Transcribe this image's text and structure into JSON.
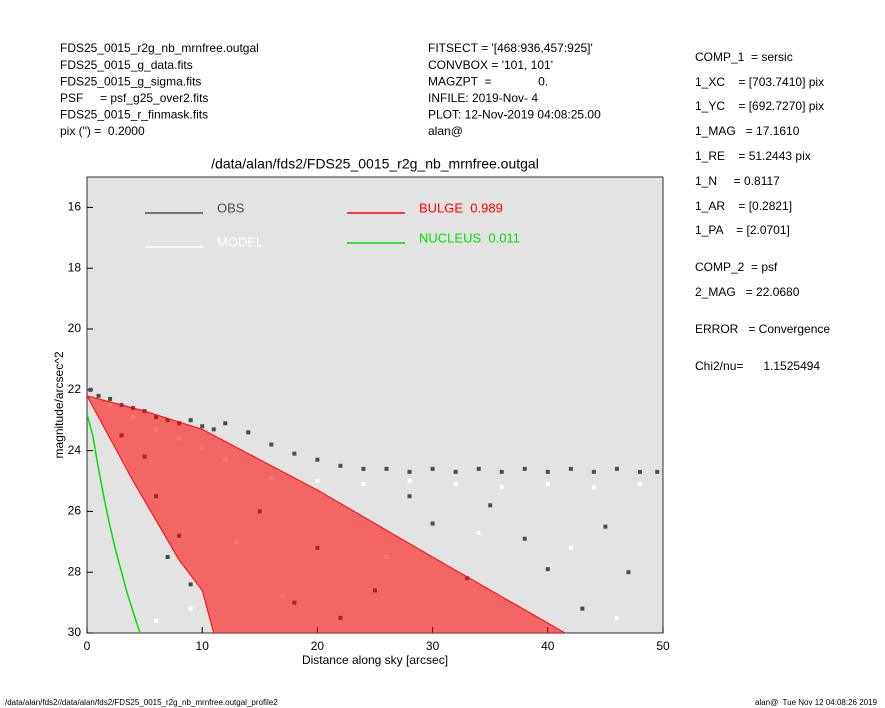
{
  "header": {
    "left": [
      "FDS25_0015_r2g_nb_mrnfree.outgal",
      "FDS25_0015_g_data.fits",
      "FDS25_0015_g_sigma.fits",
      "PSF     = psf_g25_over2.fits",
      "FDS25_0015_r_finmask.fits",
      "pix (\") =  0.2000"
    ],
    "middle": [
      "FITSECT = '[468:936,457:925]'",
      "CONVBOX = '101, 101'",
      "MAGZPT  =              0.",
      "INFILE: 2019-Nov- 4",
      "PLOT: 12-Nov-2019 04:08:25.00",
      "alan@"
    ],
    "right": [
      "COMP_1  = sersic",
      "1_XC    = [703.7410] pix",
      "1_YC    = [692.7270] pix",
      "1_MAG   = 17.1610",
      "1_RE    = 51.2443 pix",
      "1_N     = 0.8117",
      "1_AR    = [0.2821]",
      "1_PA    = [2.0701]",
      "COMP_2  = psf",
      "2_MAG   = 22.0680",
      "ERROR   = Convergence",
      "Chi2/nu=      1.1525494"
    ]
  },
  "chart_data": {
    "type": "scatter",
    "title": "/data/alan/fds2/FDS25_0015_r2g_nb_mrnfree.outgal",
    "x_label": "Distance along sky [arcsec]",
    "y_label": "magnitude/arcsec^2",
    "xlim": [
      0,
      50
    ],
    "ylim": [
      30,
      15
    ],
    "xticks": [
      0,
      10,
      20,
      30,
      40,
      50
    ],
    "yticks": [
      16,
      18,
      20,
      22,
      24,
      26,
      28,
      30
    ],
    "background": "#e3e3e3",
    "series": [
      {
        "name": "OBS",
        "color": "#4d4d4d",
        "style": "points",
        "x": [
          0.3,
          1,
          2,
          3,
          4,
          5,
          6,
          7,
          8,
          9,
          10,
          11,
          12,
          14,
          16,
          18,
          20,
          22,
          24,
          26,
          28,
          30,
          32,
          34,
          36,
          38,
          40,
          42,
          44,
          46,
          48,
          49.5,
          3,
          5,
          6,
          8,
          7,
          9,
          15,
          20,
          25,
          30,
          35,
          40,
          45,
          18,
          22,
          28,
          33,
          38,
          43,
          47
        ],
        "values": [
          22,
          22.2,
          22.3,
          22.5,
          22.6,
          22.7,
          22.9,
          23,
          23.1,
          23,
          23.2,
          23.3,
          23.1,
          23.4,
          23.8,
          24.1,
          24.3,
          24.5,
          24.6,
          24.6,
          24.7,
          24.6,
          24.7,
          24.6,
          24.7,
          24.6,
          24.7,
          24.6,
          24.7,
          24.6,
          24.7,
          24.7,
          23.5,
          24.2,
          25.5,
          26.8,
          27.5,
          28.4,
          26,
          27.2,
          28.6,
          26.4,
          25.8,
          27.9,
          26.5,
          29,
          29.5,
          25.5,
          28.2,
          26.9,
          29.2,
          28
        ]
      },
      {
        "name": "MODEL",
        "color": "#ffffff",
        "style": "points",
        "x": [
          0.5,
          2,
          4,
          6,
          8,
          10,
          12,
          16,
          20,
          24,
          28,
          32,
          36,
          40,
          44,
          48,
          13,
          17,
          26,
          34,
          42,
          46,
          6,
          9
        ],
        "values": [
          22.3,
          22.5,
          22.9,
          23.3,
          23.6,
          23.9,
          24.3,
          24.9,
          25,
          25.1,
          25,
          25.1,
          25.2,
          25.1,
          25.2,
          25.1,
          27,
          28.8,
          27.5,
          26.7,
          27.2,
          29.5,
          29.6,
          29.2
        ]
      },
      {
        "name": "BULGE  0.989",
        "color": "#ff0000",
        "style": "polygon",
        "x": [
          0,
          5,
          10,
          20,
          30,
          41.5,
          11,
          10,
          8,
          4,
          0
        ],
        "values": [
          22.2,
          22.7,
          23.3,
          25.3,
          27.5,
          30,
          30,
          28.6,
          27.6,
          25,
          22.2
        ]
      },
      {
        "name": "NUCLEUS  0.011",
        "color": "#00e000",
        "style": "line",
        "x": [
          0,
          0.5,
          1,
          1.5,
          2,
          2.5,
          3,
          3.5,
          4,
          4.6
        ],
        "values": [
          22.8,
          23.5,
          24.6,
          25.6,
          26.5,
          27.3,
          28,
          28.7,
          29.3,
          30
        ]
      }
    ]
  },
  "footer": {
    "left": "/data/alan/fds2//data/alan/fds2/FDS25_0015_r2g_nb_mrnfree.outgal_profile2",
    "right": "alan@  Tue Nov 12 04:08:26 2019"
  }
}
